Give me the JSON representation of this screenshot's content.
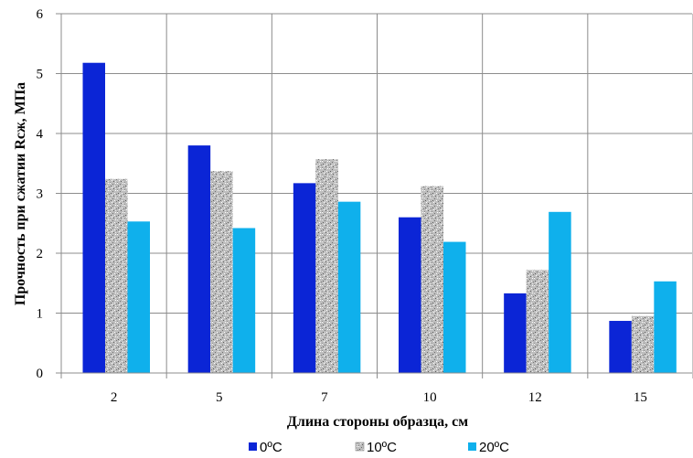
{
  "chart_data": {
    "type": "bar",
    "title": "",
    "xlabel": "Длина стороны образца, см",
    "ylabel": "Прочность при сжатии Rсж, МПа",
    "ylim": [
      0,
      6
    ],
    "yticks": [
      0,
      1,
      2,
      3,
      4,
      5,
      6
    ],
    "grid": true,
    "legend_position": "bottom",
    "categories": [
      "2",
      "5",
      "7",
      "10",
      "12",
      "15"
    ],
    "series": [
      {
        "name": "0ºC",
        "values": [
          5.18,
          3.8,
          3.17,
          2.6,
          1.33,
          0.87
        ],
        "color": "#0b25d6",
        "pattern": "solid"
      },
      {
        "name": "10ºC",
        "values": [
          3.24,
          3.37,
          3.57,
          3.12,
          1.72,
          0.95
        ],
        "color": "#b5b5b5",
        "pattern": "speckled-gray"
      },
      {
        "name": "20ºC",
        "values": [
          2.53,
          2.42,
          2.86,
          2.19,
          2.69,
          1.53
        ],
        "color": "#0fb0ec",
        "pattern": "solid"
      }
    ]
  }
}
